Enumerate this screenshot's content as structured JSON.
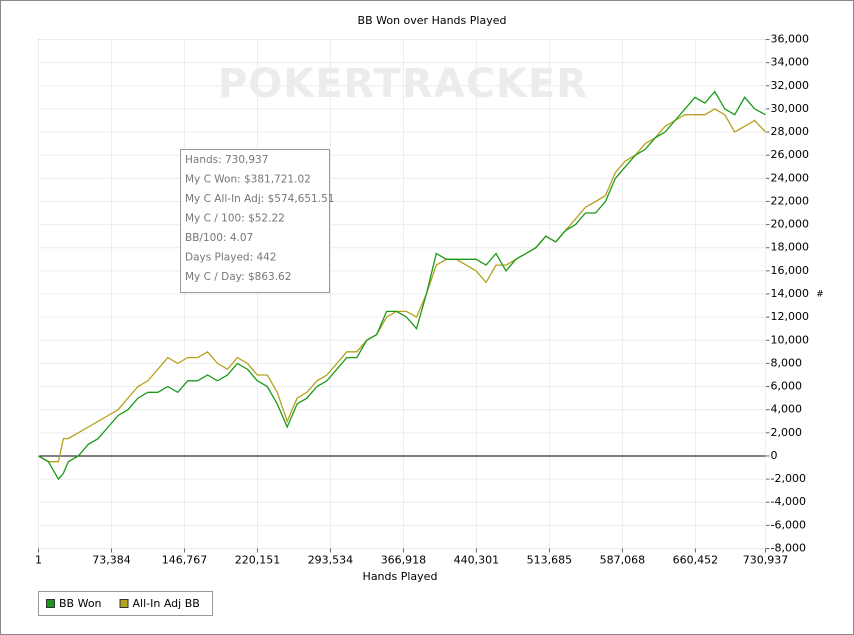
{
  "chart_data": {
    "type": "line",
    "title": "BB Won over Hands Played",
    "x_label": "Hands Played",
    "y_label": "#",
    "watermark": "POKERTRACKER",
    "tooltip": [
      "Hands: 730,937",
      "My C Won: $381,721.02",
      "My C All-In Adj: $574,651.51",
      "My C / 100: $52.22",
      "BB/100: 4.07",
      "Days Played: 442",
      "My C / Day: $863.62"
    ],
    "x": [
      1,
      10000,
      20000,
      25000,
      30000,
      40000,
      50000,
      60000,
      70000,
      80000,
      90000,
      100000,
      110000,
      120000,
      130000,
      140000,
      150000,
      160000,
      170000,
      180000,
      190000,
      200000,
      210000,
      220000,
      230000,
      240000,
      250000,
      260000,
      270000,
      280000,
      290000,
      300000,
      310000,
      320000,
      330000,
      340000,
      350000,
      360000,
      370000,
      380000,
      390000,
      400000,
      410000,
      420000,
      430000,
      440000,
      450000,
      460000,
      470000,
      480000,
      490000,
      500000,
      510000,
      520000,
      530000,
      540000,
      550000,
      560000,
      570000,
      580000,
      590000,
      600000,
      610000,
      620000,
      630000,
      640000,
      650000,
      660000,
      670000,
      680000,
      690000,
      700000,
      710000,
      720000,
      730937
    ],
    "series": [
      {
        "name": "BB Won",
        "color": "#1a9a1a",
        "values": [
          0,
          -500,
          -2000,
          -1500,
          -500,
          0,
          1000,
          1500,
          2500,
          3500,
          4000,
          5000,
          5500,
          5500,
          6000,
          5500,
          6500,
          6500,
          7000,
          6500,
          7000,
          8000,
          7500,
          6500,
          6000,
          4500,
          2500,
          4500,
          5000,
          6000,
          6500,
          7500,
          8500,
          8500,
          10000,
          10500,
          12500,
          12500,
          12000,
          11000,
          14000,
          17500,
          17000,
          17000,
          17000,
          17000,
          16500,
          17500,
          16000,
          17000,
          17500,
          18000,
          19000,
          18500,
          19500,
          20000,
          21000,
          21000,
          22000,
          24000,
          25000,
          26000,
          26500,
          27500,
          28000,
          29000,
          30000,
          31000,
          30500,
          31500,
          30000,
          29500,
          31000,
          30000,
          29500
        ]
      },
      {
        "name": "All-In Adj BB",
        "color": "#b5a21c",
        "values": [
          0,
          -500,
          -500,
          1500,
          1500,
          2000,
          2500,
          3000,
          3500,
          4000,
          5000,
          6000,
          6500,
          7500,
          8500,
          8000,
          8500,
          8500,
          9000,
          8000,
          7500,
          8500,
          8000,
          7000,
          7000,
          5500,
          3000,
          5000,
          5500,
          6500,
          7000,
          8000,
          9000,
          9000,
          10000,
          10500,
          12000,
          12500,
          12500,
          12000,
          14000,
          16500,
          17000,
          17000,
          16500,
          16000,
          15000,
          16500,
          16500,
          17000,
          17500,
          18000,
          19000,
          18500,
          19500,
          20500,
          21500,
          22000,
          22500,
          24500,
          25500,
          26000,
          27000,
          27500,
          28500,
          29000,
          29500,
          29500,
          29500,
          30000,
          29500,
          28000,
          28500,
          29000,
          28000
        ]
      }
    ],
    "xlim": [
      1,
      730937
    ],
    "xticks": [
      1,
      {
        "value": 73384,
        "label": "73,384"
      },
      {
        "value": 146767,
        "label": "146,767"
      },
      {
        "value": 220151,
        "label": "220,151"
      },
      {
        "value": 293534,
        "label": "293,534"
      },
      {
        "value": 366918,
        "label": "366,918"
      },
      {
        "value": 440301,
        "label": "440,301"
      },
      {
        "value": 513685,
        "label": "513,685"
      },
      {
        "value": 587068,
        "label": "587,068"
      },
      {
        "value": 660452,
        "label": "660,452"
      },
      {
        "value": 730937,
        "label": "730,937"
      }
    ],
    "ylim": [
      -8000,
      36000
    ],
    "yticks": [
      {
        "value": -8000,
        "label": "-8,000"
      },
      {
        "value": -6000,
        "label": "-6,000"
      },
      {
        "value": -4000,
        "label": "-4,000"
      },
      {
        "value": -2000,
        "label": "-2,000"
      },
      0,
      {
        "value": 2000,
        "label": "2,000"
      },
      {
        "value": 4000,
        "label": "4,000"
      },
      {
        "value": 6000,
        "label": "6,000"
      },
      {
        "value": 8000,
        "label": "8,000"
      },
      {
        "value": 10000,
        "label": "10,000"
      },
      {
        "value": 12000,
        "label": "12,000"
      },
      {
        "value": 14000,
        "label": "14,000"
      },
      {
        "value": 16000,
        "label": "16,000"
      },
      {
        "value": 18000,
        "label": "18,000"
      },
      {
        "value": 20000,
        "label": "20,000"
      },
      {
        "value": 22000,
        "label": "22,000"
      },
      {
        "value": 24000,
        "label": "24,000"
      },
      {
        "value": 26000,
        "label": "26,000"
      },
      {
        "value": 28000,
        "label": "28,000"
      },
      {
        "value": 30000,
        "label": "30,000"
      },
      {
        "value": 32000,
        "label": "32,000"
      },
      {
        "value": 34000,
        "label": "34,000"
      },
      {
        "value": 36000,
        "label": "36,000"
      }
    ],
    "grid": true,
    "y_axis_side": "right",
    "legend": "bottom-left"
  }
}
